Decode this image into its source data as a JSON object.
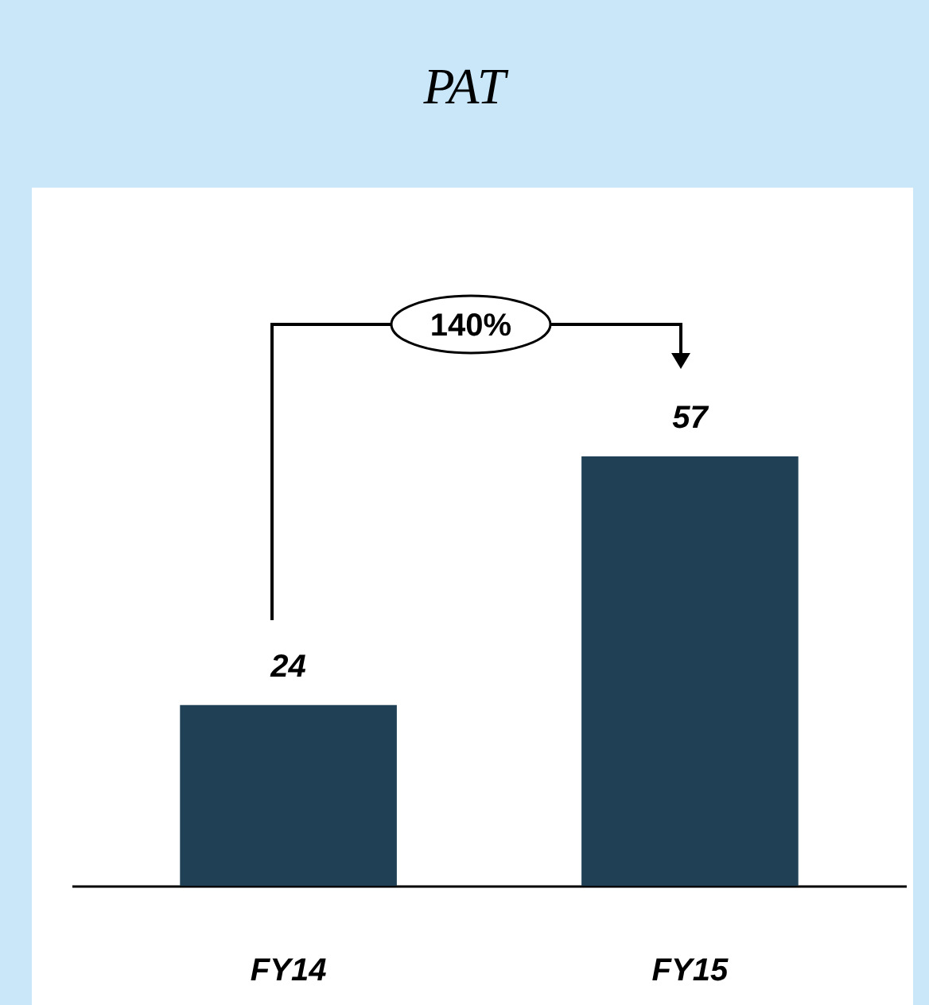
{
  "chart_data": {
    "type": "bar",
    "title": "PAT",
    "categories": [
      "FY14",
      "FY15"
    ],
    "values": [
      24,
      57
    ],
    "color": "#1f4055",
    "data_labels": true,
    "grid": false,
    "annotations": [
      "140%"
    ]
  }
}
